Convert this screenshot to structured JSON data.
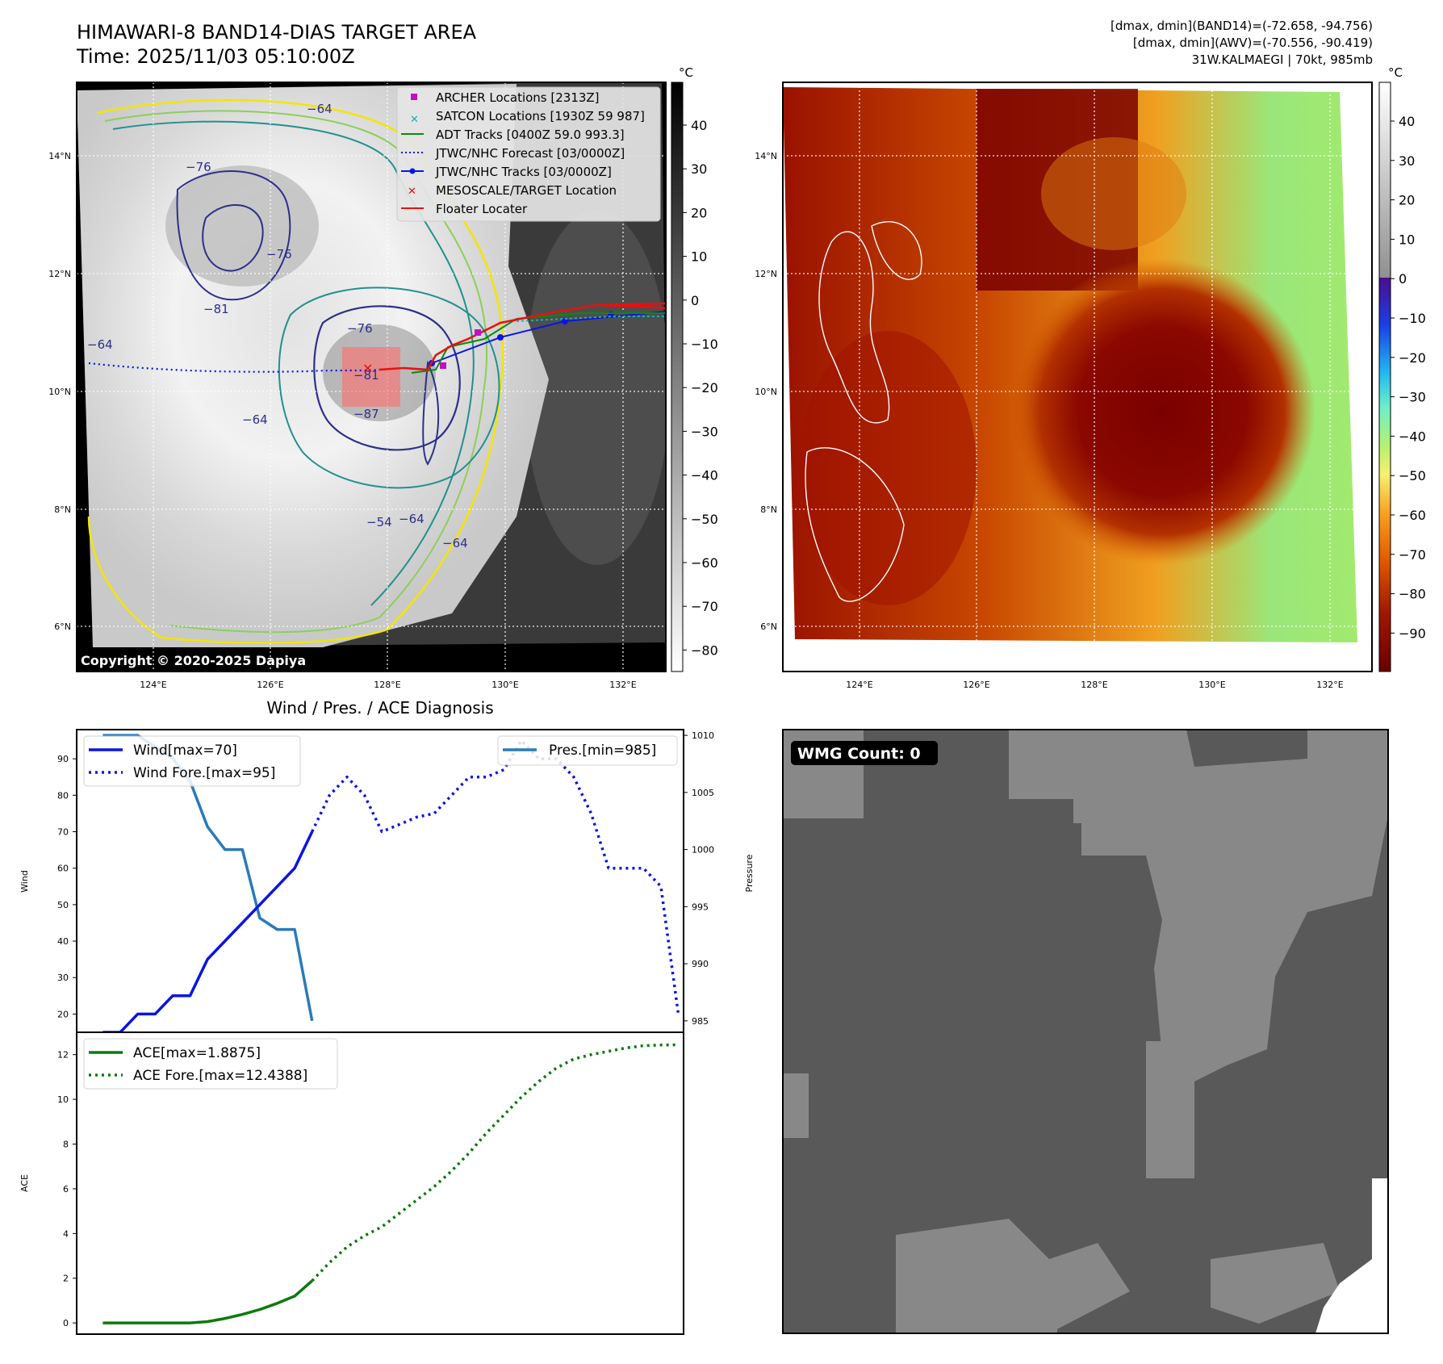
{
  "header": {
    "title": "HIMAWARI-8 BAND14-DIAS TARGET AREA",
    "time": "Time: 2025/11/03 05:10:00Z",
    "info_lines": [
      "[dmax, dmin](BAND14)=(-72.658, -94.756)",
      "[dmax, dmin](AWV)=(-70.556, -90.419)",
      "31W.KALMAEGI | 70kt, 985mb"
    ]
  },
  "colors": {
    "wind": "#0a14e6",
    "pressure": "#2a7ab9",
    "ace": "#0b7a0b",
    "track_red": "#e8110f",
    "cyan": "#12b3b3",
    "magenta": "#c010c0",
    "wmg_dark": "#595959",
    "wmg_light": "#888888"
  },
  "ir_map": {
    "lon_ticks": [
      "124°E",
      "126°E",
      "128°E",
      "130°E",
      "132°E"
    ],
    "lat_ticks": [
      "14°N",
      "12°N",
      "10°N",
      "8°N",
      "6°N"
    ],
    "colorbar_unit": "°C",
    "colorbar_ticks": [
      "40",
      "30",
      "20",
      "10",
      "0",
      "−10",
      "−20",
      "−30",
      "−40",
      "−50",
      "−60",
      "−70",
      "−80"
    ],
    "contour_labels": [
      "−76",
      "−64",
      "−76",
      "−81",
      "−76",
      "−81",
      "−64",
      "−87",
      "−64",
      "−54",
      "−64",
      "−64"
    ],
    "copyright": "Copyright © 2020-2025 Dapiya",
    "legend": [
      {
        "label": "ARCHER Locations [2313Z]",
        "icon": "magenta-square-icon"
      },
      {
        "label": "SATCON Locations [1930Z 59 987]",
        "icon": "cyan-x-icon"
      },
      {
        "label": "ADT Tracks [0400Z 59.0 993.3]",
        "icon": "green-line-icon"
      },
      {
        "label": "JTWC/NHC Forecast [03/0000Z]",
        "icon": "blue-dotted-line-icon"
      },
      {
        "label": "JTWC/NHC Tracks [03/0000Z]",
        "icon": "blue-dot-line-icon"
      },
      {
        "label": "MESOSCALE/TARGET Location",
        "icon": "red-x-icon"
      },
      {
        "label": "Floater Locater",
        "icon": "red-line-icon"
      }
    ]
  },
  "awv_map": {
    "lon_ticks": [
      "124°E",
      "126°E",
      "128°E",
      "130°E",
      "132°E"
    ],
    "lat_ticks": [
      "14°N",
      "12°N",
      "10°N",
      "8°N",
      "6°N"
    ],
    "colorbar_unit": "°C",
    "colorbar_ticks": [
      "40",
      "30",
      "20",
      "10",
      "0",
      "−10",
      "−20",
      "−30",
      "−40",
      "−50",
      "−60",
      "−70",
      "−80",
      "−90"
    ]
  },
  "chart_data": [
    {
      "type": "line",
      "title": "Wind / Pres. / ACE Diagnosis",
      "ylabel": "Wind",
      "ylabel_right": "Pressure",
      "ylim": [
        15,
        98
      ],
      "ylim_right": [
        984,
        1010.5
      ],
      "yticks": [
        20,
        30,
        40,
        50,
        60,
        70,
        80,
        90
      ],
      "yticks_right": [
        985,
        990,
        995,
        1000,
        1005,
        1010
      ],
      "x_index_range": [
        -1.5,
        33.3
      ],
      "series": [
        {
          "name": "Wind[max=70]",
          "style": "solid",
          "values": [
            15,
            15,
            20,
            20,
            25,
            25,
            35,
            40,
            45,
            50,
            55,
            60,
            70
          ]
        },
        {
          "name": "Wind Fore.[max=95]",
          "style": "dotted",
          "x_start": 12,
          "values": [
            70,
            80,
            85,
            80,
            70,
            72,
            74,
            75,
            80,
            85,
            85,
            87,
            95,
            90,
            90,
            85,
            75,
            60,
            60,
            60,
            55,
            20
          ]
        },
        {
          "name": "Pres.[min=985]",
          "style": "solid",
          "axis": "right",
          "values": [
            1010,
            1010,
            1010,
            1009,
            1008,
            1006,
            1002,
            1000,
            1000,
            994,
            993,
            993,
            985
          ]
        }
      ]
    },
    {
      "type": "line",
      "ylabel": "ACE",
      "ylim": [
        -0.5,
        13
      ],
      "yticks": [
        0,
        2,
        4,
        6,
        8,
        10,
        12
      ],
      "x_index_range": [
        -1.5,
        33.3
      ],
      "series": [
        {
          "name": "ACE[max=1.8875]",
          "style": "solid",
          "values": [
            0,
            0,
            0,
            0,
            0,
            0,
            0.06,
            0.2,
            0.38,
            0.6,
            0.88,
            1.2,
            1.8875
          ]
        },
        {
          "name": "ACE Fore.[max=12.4388]",
          "style": "dotted",
          "x_start": 12,
          "values": [
            1.8875,
            2.7,
            3.4,
            3.9,
            4.3,
            4.9,
            5.5,
            6.1,
            6.8,
            7.6,
            8.5,
            9.3,
            10.1,
            10.8,
            11.4,
            11.8,
            12.0,
            12.15,
            12.3,
            12.4,
            12.43,
            12.4388
          ]
        }
      ]
    }
  ],
  "wmg": {
    "label": "WMG Count: 0"
  }
}
